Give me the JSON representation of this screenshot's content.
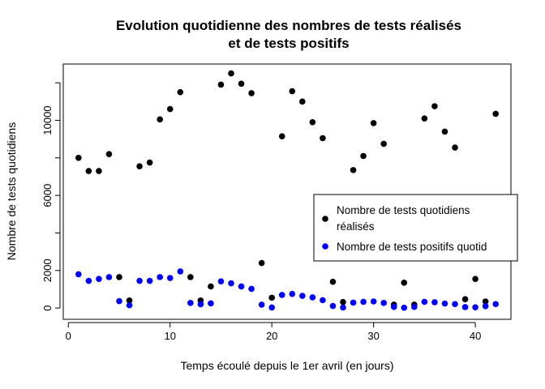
{
  "chart_data": {
    "type": "scatter",
    "title": [
      "Evolution quotidienne des nombres de tests réalisés",
      "et de tests positifs"
    ],
    "xlabel": "Temps écoulé depuis le 1er avril (en jours)",
    "ylabel": "Nombre de tests quotidiens",
    "xlim": [
      -0.5,
      43.5
    ],
    "ylim": [
      -600,
      13000
    ],
    "x_ticks": [
      0,
      10,
      20,
      30,
      40
    ],
    "y_ticks": [
      0,
      2000,
      6000,
      10000
    ],
    "legend_position": "right",
    "legend_lines": [
      [
        "Nombre de tests quotidiens",
        "réalisés"
      ],
      [
        "Nombre de tests positifs quotid"
      ]
    ],
    "series": [
      {
        "name": "Nombre de tests quotidiens réalisés",
        "color": "#000000",
        "x": [
          1,
          2,
          3,
          4,
          5,
          6,
          7,
          8,
          9,
          10,
          11,
          12,
          13,
          14,
          15,
          16,
          17,
          18,
          19,
          20,
          21,
          22,
          23,
          24,
          25,
          26,
          27,
          28,
          29,
          30,
          31,
          32,
          33,
          34,
          35,
          36,
          37,
          38,
          39,
          40,
          41,
          42
        ],
        "y": [
          8000,
          7300,
          7300,
          8200,
          1650,
          400,
          7550,
          7750,
          10050,
          10600,
          11500,
          1650,
          400,
          1150,
          11900,
          12500,
          11950,
          11450,
          2400,
          550,
          9150,
          11550,
          11000,
          9900,
          9050,
          1400,
          320,
          7350,
          8100,
          9850,
          8750,
          180,
          1350,
          180,
          10100,
          10750,
          9400,
          8550,
          470,
          1550,
          350,
          10350
        ]
      },
      {
        "name": "Nombre de tests positifs quotid",
        "color": "#0000ff",
        "x": [
          1,
          2,
          3,
          4,
          5,
          6,
          7,
          8,
          9,
          10,
          11,
          12,
          13,
          14,
          15,
          16,
          17,
          18,
          19,
          20,
          21,
          22,
          23,
          24,
          25,
          26,
          27,
          28,
          29,
          30,
          31,
          32,
          33,
          34,
          35,
          36,
          37,
          38,
          39,
          40,
          41,
          42
        ],
        "y": [
          1800,
          1450,
          1550,
          1650,
          370,
          150,
          1450,
          1450,
          1650,
          1600,
          1950,
          270,
          200,
          250,
          1420,
          1320,
          1150,
          1020,
          180,
          30,
          700,
          750,
          650,
          570,
          420,
          110,
          30,
          290,
          330,
          350,
          270,
          60,
          20,
          60,
          330,
          310,
          240,
          210,
          50,
          40,
          100,
          210
        ]
      }
    ]
  }
}
